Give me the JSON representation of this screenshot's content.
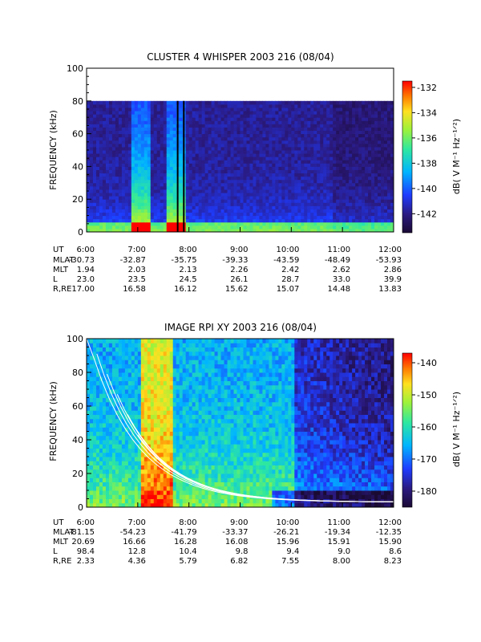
{
  "chart_data": [
    {
      "type": "heatmap",
      "title": "CLUSTER 4 WHISPER 2003 216 (08/04)",
      "ylabel": "FREQUENCY (kHz)",
      "ylim": [
        0,
        100
      ],
      "yticks": [
        "0",
        "20",
        "40",
        "60",
        "80",
        "100"
      ],
      "xticks": [
        "6:00",
        "7:00",
        "8:00",
        "9:00",
        "10:00",
        "11:00",
        "12:00"
      ],
      "data_top_khz": 80,
      "colorbar": {
        "label": "dB( V M⁻¹ Hz⁻¹ᐟ²)",
        "range": [
          -143.5,
          -131.5
        ],
        "ticks": [
          "-132",
          "-134",
          "-136",
          "-138",
          "-140",
          "-142"
        ]
      },
      "ephemeris": [
        {
          "label": "UT",
          "values": [
            "6:00",
            "7:00",
            "8:00",
            "9:00",
            "10:00",
            "11:00",
            "12:00"
          ]
        },
        {
          "label": "MLAT",
          "values": [
            "-30.73",
            "-32.87",
            "-35.75",
            "-39.33",
            "-43.59",
            "-48.49",
            "-53.93"
          ]
        },
        {
          "label": "MLT",
          "values": [
            "1.94",
            "2.03",
            "2.13",
            "2.26",
            "2.42",
            "2.62",
            "2.86"
          ]
        },
        {
          "label": "L",
          "values": [
            "23.0",
            "23.5",
            "24.5",
            "26.1",
            "28.7",
            "33.0",
            "39.9"
          ]
        },
        {
          "label": "R,RE",
          "values": [
            "17.00",
            "16.58",
            "16.12",
            "15.62",
            "15.07",
            "14.48",
            "13.83"
          ]
        }
      ]
    },
    {
      "type": "heatmap",
      "title": "IMAGE RPI XY 2003 216 (08/04)",
      "ylabel": "FREQUENCY (kHz)",
      "ylim": [
        0,
        100
      ],
      "yticks": [
        "0",
        "20",
        "40",
        "60",
        "80",
        "100"
      ],
      "xticks": [
        "6:00",
        "7:00",
        "8:00",
        "9:00",
        "10:00",
        "11:00",
        "12:00"
      ],
      "colorbar": {
        "label": "dB( V M⁻¹ Hz⁻¹ᐟ²)",
        "range": [
          -185,
          -137
        ],
        "ticks": [
          "-140",
          "-150",
          "-160",
          "-170",
          "-180"
        ]
      },
      "ephemeris": [
        {
          "label": "UT",
          "values": [
            "6:00",
            "7:00",
            "8:00",
            "9:00",
            "10:00",
            "11:00",
            "12:00"
          ]
        },
        {
          "label": "MLAT",
          "values": [
            "-81.15",
            "-54.23",
            "-41.79",
            "-33.37",
            "-26.21",
            "-19.34",
            "-12.35"
          ]
        },
        {
          "label": "MLT",
          "values": [
            "20.69",
            "16.66",
            "16.28",
            "16.08",
            "15.96",
            "15.91",
            "15.90"
          ]
        },
        {
          "label": "L",
          "values": [
            "98.4",
            "12.8",
            "10.4",
            "9.8",
            "9.4",
            "9.0",
            "8.6"
          ]
        },
        {
          "label": "R,RE",
          "values": [
            "2.33",
            "4.36",
            "5.79",
            "6.82",
            "7.55",
            "8.00",
            "8.23"
          ]
        }
      ]
    }
  ]
}
